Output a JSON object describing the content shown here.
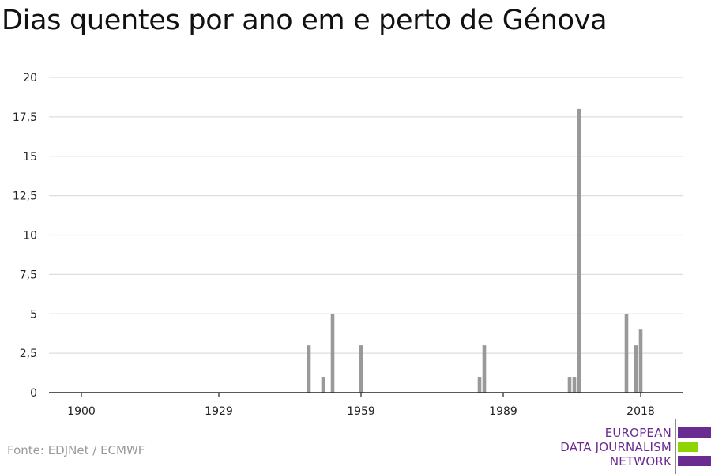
{
  "title": "Dias quentes por ano em e perto de Génova",
  "source": "Fonte: EDJNet / ECMWF",
  "logo": {
    "lines": [
      "EUROPEAN",
      "DATA JOURNALISM",
      "NETWORK"
    ],
    "colors": [
      "#6a2c91",
      "#8fd400",
      "#6a2c91"
    ]
  },
  "colors": {
    "bar": "#999999",
    "grid": "#dddddd",
    "axis": "#222222"
  },
  "chart_data": {
    "type": "bar",
    "title": "Dias quentes por ano em e perto de Génova",
    "xlabel": "",
    "ylabel": "",
    "xlim": [
      1900,
      2019
    ],
    "ylim": [
      0,
      20
    ],
    "grid": true,
    "x_ticks": [
      1900,
      1929,
      1959,
      1989,
      2018
    ],
    "y_ticks": [
      {
        "value": 0,
        "label": "0"
      },
      {
        "value": 2.5,
        "label": "2,5"
      },
      {
        "value": 5,
        "label": "5"
      },
      {
        "value": 7.5,
        "label": "7,5"
      },
      {
        "value": 10,
        "label": "10"
      },
      {
        "value": 12.5,
        "label": "12,5"
      },
      {
        "value": 15,
        "label": "15"
      },
      {
        "value": 17.5,
        "label": "17,5"
      },
      {
        "value": 20,
        "label": "20"
      }
    ],
    "x": [
      1948,
      1951,
      1953,
      1959,
      1984,
      1985,
      2003,
      2004,
      2005,
      2015,
      2017,
      2018
    ],
    "values": [
      3,
      1,
      5,
      3,
      1,
      3,
      1,
      1,
      18,
      5,
      3,
      4
    ]
  }
}
